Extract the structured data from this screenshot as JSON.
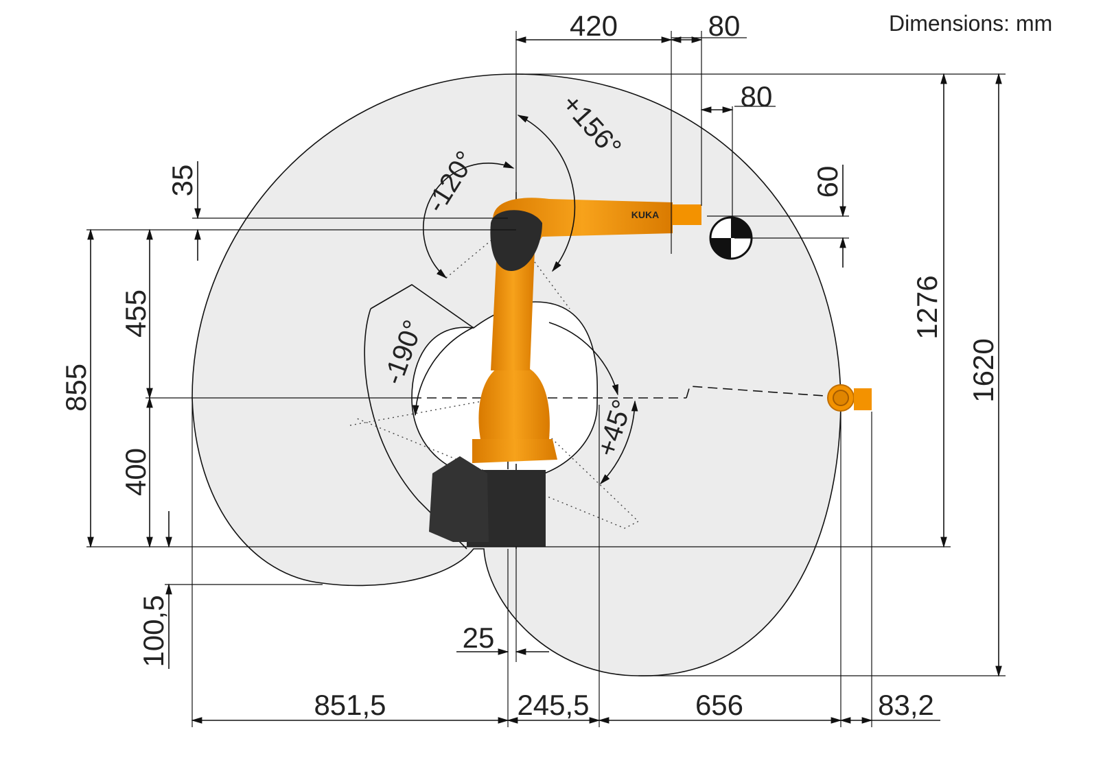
{
  "header": {
    "units_label": "Dimensions: mm"
  },
  "robot": {
    "brand_label": "KUKA",
    "color_orange": "#f39200",
    "color_dark": "#2b2b2b"
  },
  "dimensions": {
    "top_offset": "420",
    "flange_length": "80",
    "tcp_offset_x": "80",
    "tcp_offset_z": "60",
    "shoulder_offset": "35",
    "arm_length": "455",
    "base_height": "400",
    "total_height_axis": "855",
    "reach_height_above_base": "1276",
    "total_envelope_height": "1620",
    "below_base": "100,5",
    "axis_offset": "25",
    "rear_reach": "851,5",
    "front_inner": "245,5",
    "front_reach": "656",
    "tool_length": "83,2"
  },
  "angles": {
    "axis3_pos": "+156°",
    "axis3_neg": "-120°",
    "axis2_neg": "-190°",
    "axis2_pos": "+45°"
  }
}
